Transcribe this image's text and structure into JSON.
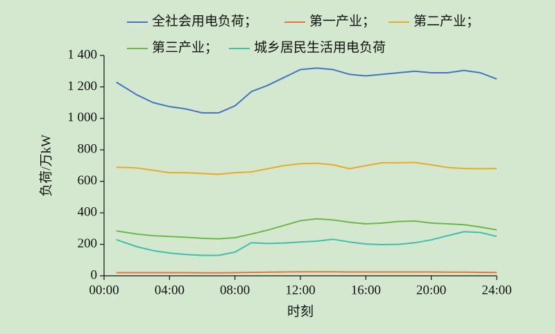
{
  "chart_data": {
    "type": "line",
    "x_label": "时刻",
    "y_label": "负荷/万kW",
    "x": [
      0.75,
      2,
      3,
      4,
      5,
      6,
      7,
      8,
      9,
      10,
      11,
      12,
      13,
      14,
      15,
      16,
      17,
      18,
      19,
      20,
      21,
      22,
      23,
      24
    ],
    "series": [
      {
        "name": "全社会用电负荷；",
        "color": "#4472c4",
        "values": [
          1230,
          1150,
          1100,
          1075,
          1060,
          1035,
          1035,
          1080,
          1170,
          1210,
          1260,
          1310,
          1320,
          1310,
          1280,
          1270,
          1280,
          1290,
          1300,
          1290,
          1290,
          1305,
          1290,
          1250
        ]
      },
      {
        "name": "第一产业；",
        "color": "#e8743b",
        "values": [
          20,
          20,
          20,
          20,
          20,
          19,
          19,
          20,
          22,
          23,
          24,
          25,
          25,
          25,
          24,
          24,
          24,
          24,
          24,
          24,
          23,
          23,
          22,
          21
        ]
      },
      {
        "name": "第二产业；",
        "color": "#e8aa2a",
        "values": [
          690,
          685,
          670,
          655,
          655,
          650,
          645,
          655,
          660,
          680,
          700,
          712,
          715,
          705,
          680,
          700,
          718,
          718,
          720,
          705,
          688,
          682,
          680,
          682
        ]
      },
      {
        "name": "第三产业；",
        "color": "#6ab845",
        "values": [
          285,
          265,
          255,
          250,
          245,
          238,
          235,
          242,
          265,
          290,
          320,
          350,
          362,
          355,
          340,
          330,
          335,
          345,
          348,
          335,
          330,
          325,
          310,
          292
        ]
      },
      {
        "name": "城乡居民生活用电负荷",
        "color": "#3cbfae",
        "values": [
          230,
          185,
          160,
          145,
          135,
          130,
          130,
          150,
          210,
          205,
          208,
          215,
          220,
          232,
          215,
          202,
          198,
          200,
          210,
          228,
          255,
          280,
          275,
          250
        ]
      }
    ],
    "xlim": [
      0,
      24
    ],
    "xticks": [
      {
        "value": 0,
        "label": "00:00"
      },
      {
        "value": 4,
        "label": "04:00"
      },
      {
        "value": 8,
        "label": "08:00"
      },
      {
        "value": 12,
        "label": "12:00"
      },
      {
        "value": 16,
        "label": "16:00"
      },
      {
        "value": 20,
        "label": "20:00"
      },
      {
        "value": 24,
        "label": "24:00"
      }
    ],
    "ylim": [
      0,
      1400
    ],
    "yticks": [
      0,
      200,
      400,
      600,
      800,
      {
        "value": 1000,
        "label": "1 000"
      },
      {
        "value": 1200,
        "label": "1 200"
      },
      {
        "value": 1400,
        "label": "1 400"
      }
    ],
    "grid": false
  }
}
